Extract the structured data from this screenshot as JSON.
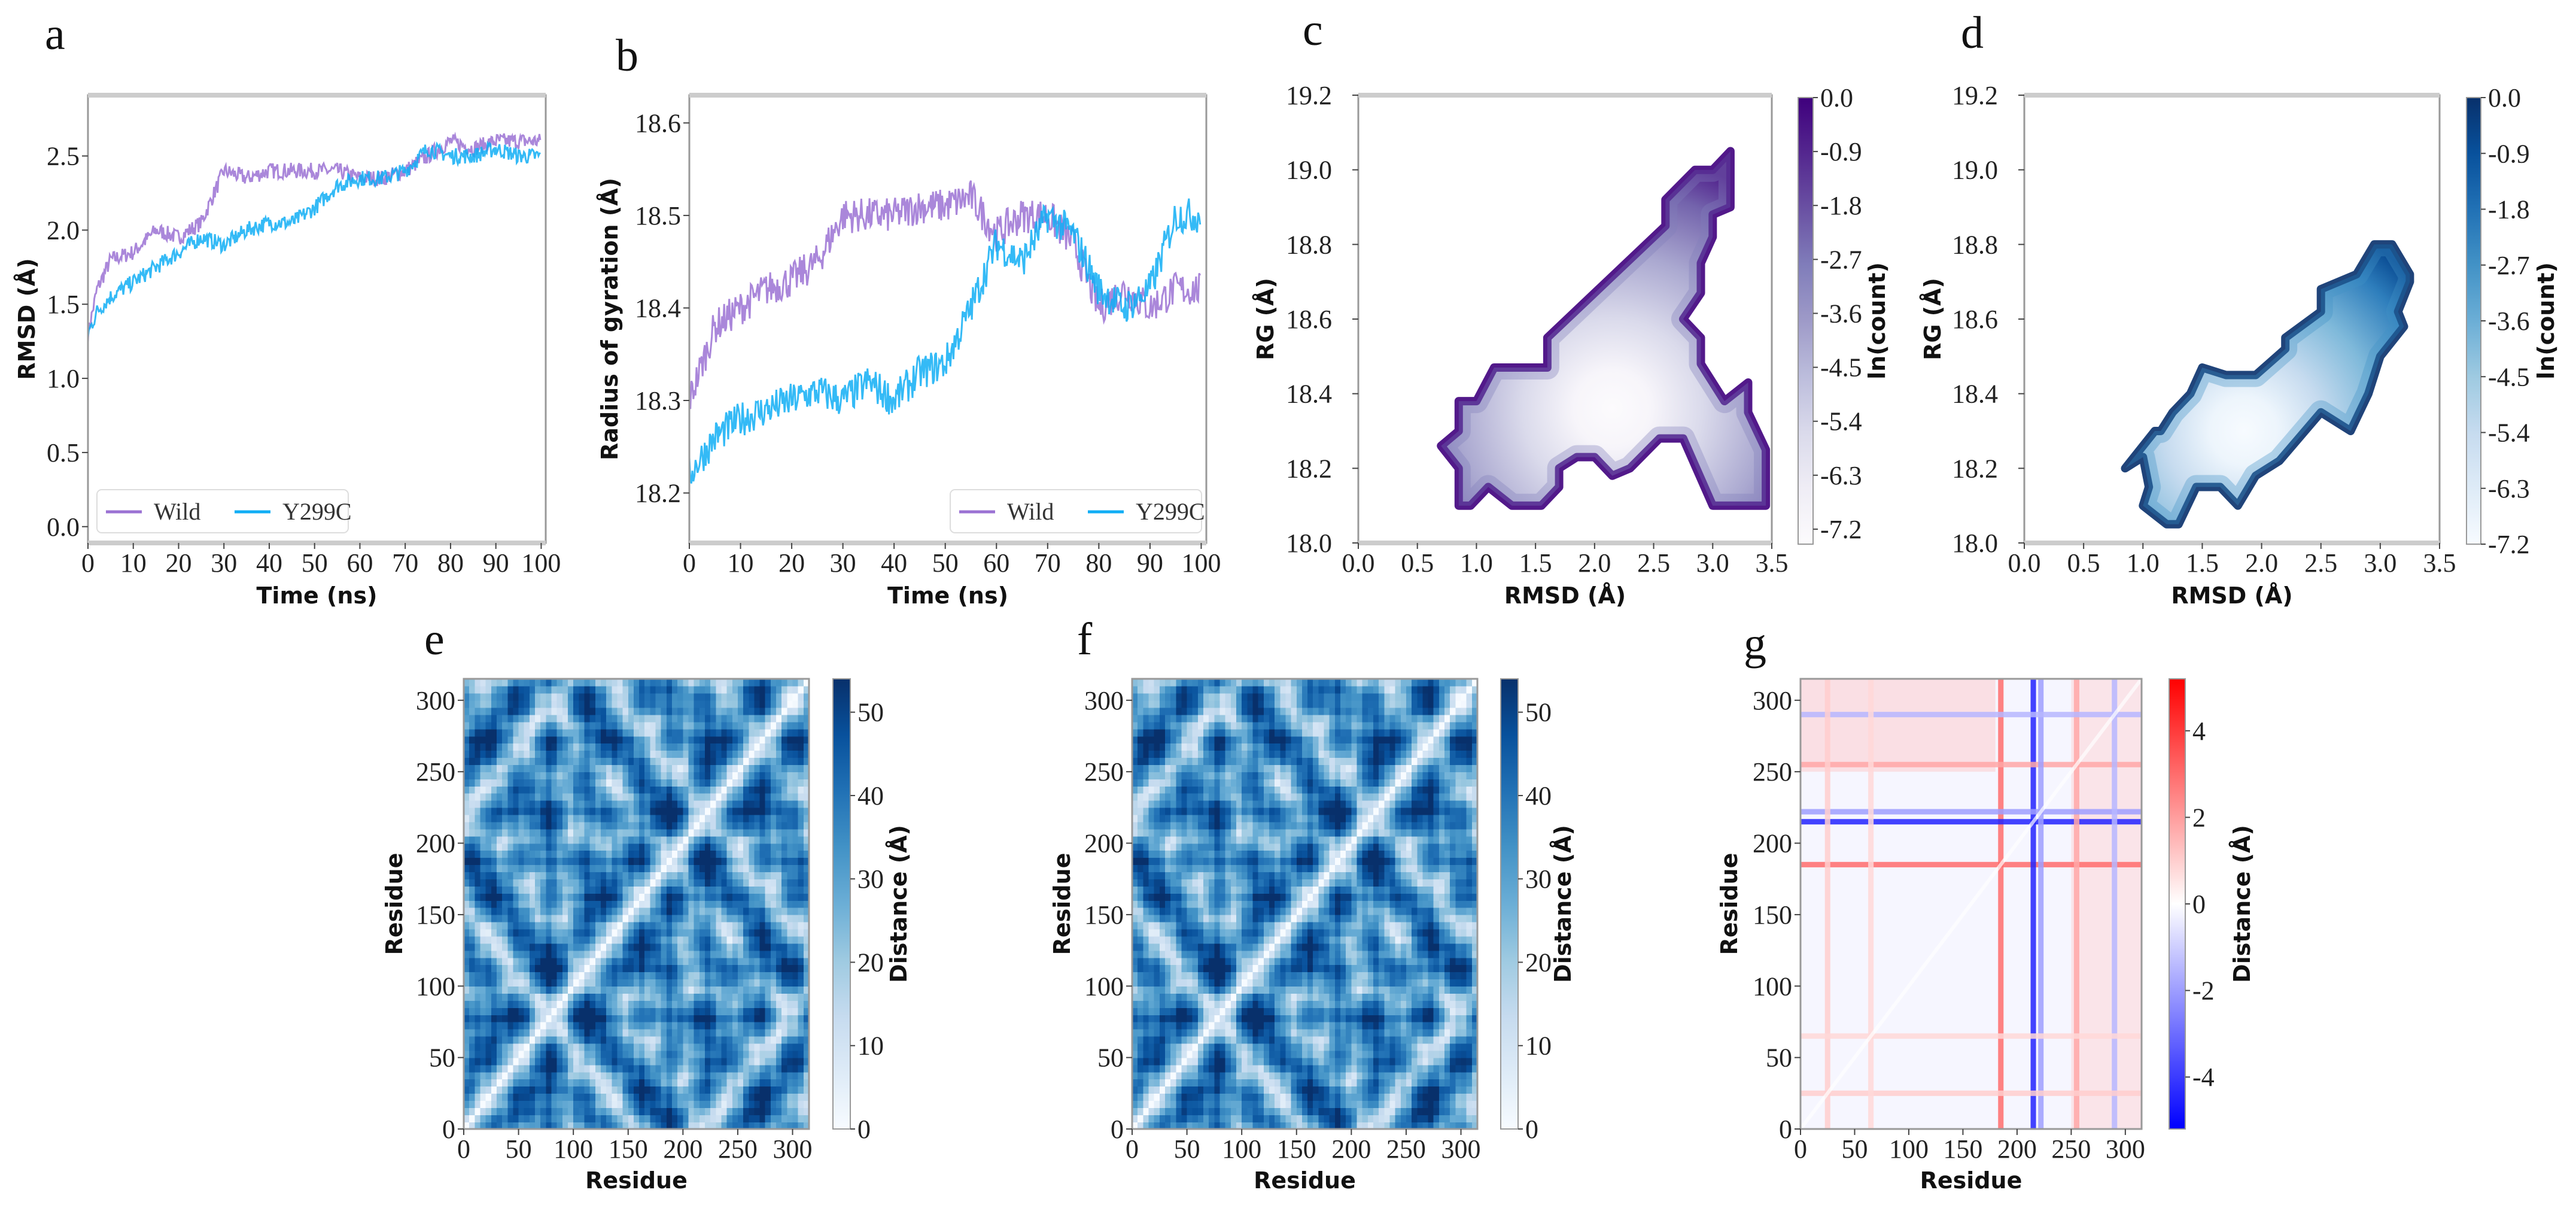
{
  "panel_labels": [
    "a",
    "b",
    "c",
    "d",
    "e",
    "f",
    "g"
  ],
  "colors": {
    "wild": "#9b72d3",
    "y299c": "#10aef5",
    "purple_dark": "#3f007d",
    "blue_dark": "#08306b",
    "bwr_red": "#ff0000",
    "bwr_blue": "#0000ff"
  },
  "chart_data": [
    {
      "panel": "a",
      "type": "line",
      "xlabel": "Time (ns)",
      "ylabel": "RMSD (Å)",
      "xlim": [
        0,
        101
      ],
      "ylim": [
        -0.11,
        2.91
      ],
      "xticks": [
        "0",
        "10",
        "20",
        "30",
        "40",
        "50",
        "60",
        "70",
        "80",
        "90",
        "100"
      ],
      "yticks": [
        "0.0",
        "0.5",
        "1.0",
        "1.5",
        "2.0",
        "2.5"
      ],
      "legend": {
        "placement": "lower-left",
        "entries": [
          "Wild",
          "Y299C"
        ]
      },
      "series": [
        {
          "name": "Wild",
          "x": [
            0,
            2,
            5,
            10,
            15,
            20,
            25,
            30,
            35,
            40,
            45,
            50,
            55,
            60,
            65,
            70,
            75,
            80,
            85,
            90,
            95,
            100
          ],
          "y": [
            1.3,
            1.6,
            1.8,
            1.85,
            2.0,
            1.95,
            2.05,
            2.4,
            2.35,
            2.4,
            2.4,
            2.4,
            2.4,
            2.35,
            2.35,
            2.4,
            2.5,
            2.6,
            2.55,
            2.6,
            2.6,
            2.6
          ]
        },
        {
          "name": "Y299C",
          "x": [
            0,
            2,
            5,
            10,
            15,
            20,
            25,
            30,
            35,
            40,
            45,
            50,
            55,
            60,
            65,
            70,
            75,
            80,
            85,
            90,
            95,
            100
          ],
          "y": [
            1.3,
            1.45,
            1.55,
            1.65,
            1.75,
            1.85,
            1.95,
            1.9,
            2.0,
            2.05,
            2.05,
            2.15,
            2.3,
            2.35,
            2.35,
            2.4,
            2.55,
            2.5,
            2.5,
            2.55,
            2.5,
            2.5
          ]
        }
      ]
    },
    {
      "panel": "b",
      "type": "line",
      "xlabel": "Time (ns)",
      "ylabel": "Radius of gyration (Å)",
      "xlim": [
        0,
        101
      ],
      "ylim": [
        18.146,
        18.63
      ],
      "xticks": [
        "0",
        "10",
        "20",
        "30",
        "40",
        "50",
        "60",
        "70",
        "80",
        "90",
        "100"
      ],
      "yticks": [
        "18.2",
        "18.3",
        "18.4",
        "18.5",
        "18.6"
      ],
      "legend": {
        "placement": "lower-right",
        "entries": [
          "Wild",
          "Y299C"
        ]
      },
      "series": [
        {
          "name": "Wild",
          "x": [
            0,
            5,
            10,
            15,
            20,
            25,
            30,
            35,
            40,
            45,
            50,
            55,
            60,
            65,
            70,
            75,
            80,
            85,
            90,
            95,
            100
          ],
          "y": [
            18.3,
            18.38,
            18.4,
            18.42,
            18.43,
            18.45,
            18.5,
            18.5,
            18.5,
            18.51,
            18.51,
            18.52,
            18.48,
            18.5,
            18.5,
            18.47,
            18.4,
            18.42,
            18.4,
            18.42,
            18.42
          ]
        },
        {
          "name": "Y299C",
          "x": [
            0,
            5,
            10,
            15,
            20,
            25,
            30,
            35,
            40,
            45,
            50,
            55,
            60,
            65,
            70,
            75,
            80,
            85,
            90,
            95,
            100
          ],
          "y": [
            18.22,
            18.26,
            18.28,
            18.29,
            18.3,
            18.31,
            18.3,
            18.32,
            18.3,
            18.33,
            18.34,
            18.4,
            18.47,
            18.45,
            18.5,
            18.48,
            18.42,
            18.4,
            18.42,
            18.5,
            18.5
          ]
        }
      ]
    },
    {
      "panel": "c",
      "type": "heatmap",
      "subtype": "free-energy landscape",
      "xlabel": "RMSD (Å)",
      "ylabel": "RG (Å)",
      "xlim": [
        0,
        3.5
      ],
      "ylim": [
        18.0,
        19.2
      ],
      "xticks": [
        "0.0",
        "0.5",
        "1.0",
        "1.5",
        "2.0",
        "2.5",
        "3.0",
        "3.5"
      ],
      "yticks": [
        "18.0",
        "18.2",
        "18.4",
        "18.6",
        "18.8",
        "19.0",
        "19.2"
      ],
      "colorbar": {
        "label": "ln(count)",
        "range": [
          -7.45,
          0
        ],
        "ticks": [
          "0.0",
          "-0.9",
          "-1.8",
          "-2.7",
          "-3.6",
          "-4.5",
          "-5.4",
          "-6.3",
          "-7.2"
        ],
        "colormap": "Purples"
      },
      "minimum": [
        2.15,
        18.36
      ],
      "region_outline": [
        [
          0.7,
          18.26
        ],
        [
          0.85,
          18.2
        ],
        [
          0.85,
          18.1
        ],
        [
          0.95,
          18.1
        ],
        [
          1.1,
          18.15
        ],
        [
          1.3,
          18.1
        ],
        [
          1.55,
          18.1
        ],
        [
          1.7,
          18.15
        ],
        [
          1.7,
          18.2
        ],
        [
          1.85,
          18.23
        ],
        [
          2.0,
          18.23
        ],
        [
          2.15,
          18.18
        ],
        [
          2.3,
          18.2
        ],
        [
          2.55,
          18.28
        ],
        [
          2.75,
          18.28
        ],
        [
          3.0,
          18.1
        ],
        [
          3.45,
          18.1
        ],
        [
          3.45,
          18.25
        ],
        [
          3.3,
          18.35
        ],
        [
          3.3,
          18.43
        ],
        [
          3.1,
          18.38
        ],
        [
          2.9,
          18.48
        ],
        [
          2.9,
          18.55
        ],
        [
          2.75,
          18.6
        ],
        [
          2.9,
          18.67
        ],
        [
          2.9,
          18.75
        ],
        [
          3.0,
          18.82
        ],
        [
          3.0,
          18.88
        ],
        [
          3.15,
          18.9
        ],
        [
          3.15,
          19.05
        ],
        [
          3.0,
          19.0
        ],
        [
          2.85,
          19.0
        ],
        [
          2.6,
          18.92
        ],
        [
          2.6,
          18.85
        ],
        [
          1.6,
          18.55
        ],
        [
          1.6,
          18.47
        ],
        [
          1.4,
          18.47
        ],
        [
          1.15,
          18.47
        ],
        [
          1.0,
          18.38
        ],
        [
          0.85,
          18.38
        ],
        [
          0.85,
          18.3
        ]
      ]
    },
    {
      "panel": "d",
      "type": "heatmap",
      "subtype": "free-energy landscape",
      "xlabel": "RMSD (Å)",
      "ylabel": "RG (Å)",
      "xlim": [
        0,
        3.5
      ],
      "ylim": [
        18.0,
        19.2
      ],
      "xticks": [
        "0.0",
        "0.5",
        "1.0",
        "1.5",
        "2.0",
        "2.5",
        "3.0",
        "3.5"
      ],
      "yticks": [
        "18.0",
        "18.2",
        "18.4",
        "18.6",
        "18.8",
        "19.0",
        "19.2"
      ],
      "colorbar": {
        "label": "ln(count)",
        "range": [
          -7.2,
          0
        ],
        "ticks": [
          "0.0",
          "-0.9",
          "-1.8",
          "-2.7",
          "-3.6",
          "-4.5",
          "-5.4",
          "-6.3",
          "-7.2"
        ],
        "colormap": "Blues"
      },
      "minimum": [
        1.85,
        18.3
      ],
      "region_outline": [
        [
          0.85,
          18.2
        ],
        [
          1.0,
          18.23
        ],
        [
          1.05,
          18.15
        ],
        [
          1.0,
          18.1
        ],
        [
          1.2,
          18.05
        ],
        [
          1.3,
          18.05
        ],
        [
          1.45,
          18.15
        ],
        [
          1.65,
          18.15
        ],
        [
          1.8,
          18.1
        ],
        [
          1.95,
          18.18
        ],
        [
          2.15,
          18.22
        ],
        [
          2.5,
          18.35
        ],
        [
          2.75,
          18.3
        ],
        [
          2.9,
          18.4
        ],
        [
          3.0,
          18.5
        ],
        [
          3.2,
          18.58
        ],
        [
          3.15,
          18.62
        ],
        [
          3.25,
          18.7
        ],
        [
          3.25,
          18.72
        ],
        [
          3.1,
          18.8
        ],
        [
          2.95,
          18.8
        ],
        [
          2.8,
          18.72
        ],
        [
          2.5,
          18.68
        ],
        [
          2.5,
          18.62
        ],
        [
          2.2,
          18.55
        ],
        [
          2.2,
          18.52
        ],
        [
          1.95,
          18.45
        ],
        [
          1.7,
          18.45
        ],
        [
          1.5,
          18.47
        ],
        [
          1.4,
          18.4
        ],
        [
          1.25,
          18.35
        ],
        [
          1.15,
          18.3
        ],
        [
          1.1,
          18.3
        ]
      ]
    },
    {
      "panel": "e",
      "type": "heatmap",
      "subtype": "residue distance matrix",
      "xlabel": "Residue",
      "ylabel": "Residue",
      "xlim": [
        0,
        315
      ],
      "ylim": [
        0,
        315
      ],
      "xticks": [
        "0",
        "50",
        "100",
        "150",
        "200",
        "250",
        "300"
      ],
      "yticks": [
        "0",
        "50",
        "100",
        "150",
        "200",
        "250",
        "300"
      ],
      "colorbar": {
        "label": "Distance (Å)",
        "range": [
          0,
          54
        ],
        "ticks": [
          "0",
          "10",
          "20",
          "30",
          "40",
          "50"
        ],
        "colormap": "Blues"
      }
    },
    {
      "panel": "f",
      "type": "heatmap",
      "subtype": "residue distance matrix",
      "xlabel": "Residue",
      "ylabel": "Residue",
      "xlim": [
        0,
        315
      ],
      "ylim": [
        0,
        315
      ],
      "xticks": [
        "0",
        "50",
        "100",
        "150",
        "200",
        "250",
        "300"
      ],
      "yticks": [
        "0",
        "50",
        "100",
        "150",
        "200",
        "250",
        "300"
      ],
      "colorbar": {
        "label": "Distance (Å)",
        "range": [
          0,
          54
        ],
        "ticks": [
          "0",
          "10",
          "20",
          "30",
          "40",
          "50"
        ],
        "colormap": "Blues"
      }
    },
    {
      "panel": "g",
      "type": "heatmap",
      "subtype": "distance difference matrix",
      "xlabel": "Residue",
      "ylabel": "Residue",
      "xlim": [
        0,
        315
      ],
      "ylim": [
        0,
        315
      ],
      "xticks": [
        "0",
        "50",
        "100",
        "150",
        "200",
        "250",
        "300"
      ],
      "yticks": [
        "0",
        "50",
        "100",
        "150",
        "200",
        "250",
        "300"
      ],
      "colorbar": {
        "label": "Distance (Å)",
        "range": [
          -5.2,
          5.2
        ],
        "ticks": [
          "-4",
          "-2",
          "0",
          "2",
          "4"
        ],
        "colormap": "bwr"
      },
      "bands": [
        {
          "residue": 185,
          "delta": 3.0
        },
        {
          "residue": 215,
          "delta": -4.5
        },
        {
          "residue": 255,
          "delta": 1.8
        },
        {
          "residue": 222,
          "delta": -2.0
        },
        {
          "residue": 290,
          "delta": -1.5
        },
        {
          "residue": 25,
          "delta": 1.0
        },
        {
          "residue": 65,
          "delta": 0.8
        }
      ],
      "regions": [
        {
          "rows": [
            250,
            315
          ],
          "cols": [
            0,
            180
          ],
          "delta": 1.2
        },
        {
          "rows": [
            0,
            315
          ],
          "cols": [
            250,
            315
          ],
          "delta": 1.0
        }
      ]
    }
  ]
}
